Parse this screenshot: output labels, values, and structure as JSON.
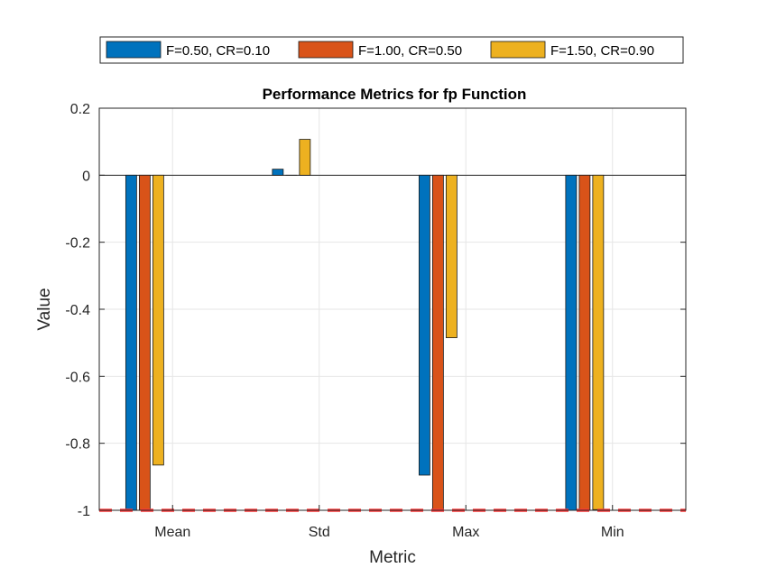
{
  "chart_data": {
    "type": "bar",
    "title": "Performance Metrics for fp Function",
    "xlabel": "Metric",
    "ylabel": "Value",
    "categories": [
      "Mean",
      "Std",
      "Max",
      "Min"
    ],
    "ylim": [
      -1,
      0.2
    ],
    "yticks": [
      0.2,
      0,
      -0.2,
      -0.4,
      -0.6,
      -0.8,
      -1
    ],
    "yticklabels": [
      "0.2",
      "0",
      "-0.2",
      "-0.4",
      "-0.6",
      "-0.8",
      "-1"
    ],
    "grid": true,
    "legend_placement": "top-outside",
    "reference_line": {
      "y": -1,
      "color": "#ff3b3b",
      "style": "dashed"
    },
    "series": [
      {
        "name": "F=0.50, CR=0.10",
        "color": "#0072bd",
        "values": [
          -1.0,
          0.018,
          -0.895,
          -1.0
        ]
      },
      {
        "name": "F=1.00, CR=0.50",
        "color": "#d95319",
        "values": [
          -1.0,
          0.0,
          -1.0,
          -1.0
        ]
      },
      {
        "name": "F=1.50, CR=0.90",
        "color": "#edb120",
        "values": [
          -0.865,
          0.107,
          -0.485,
          -0.998
        ]
      }
    ]
  }
}
